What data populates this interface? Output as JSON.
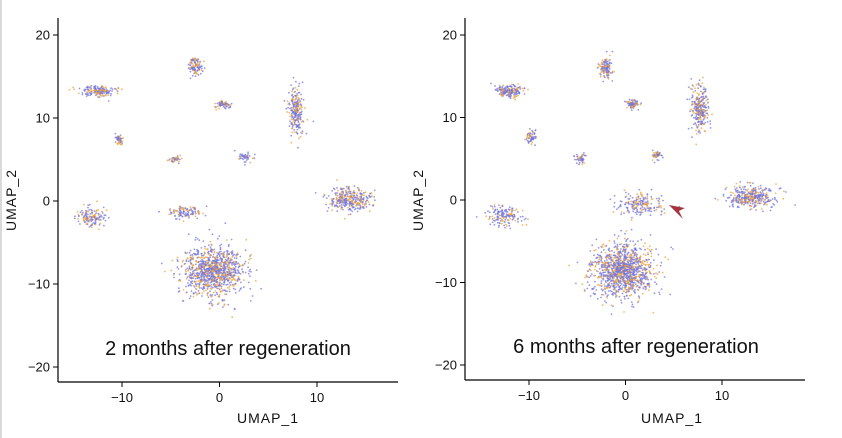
{
  "chart_data": [
    {
      "type": "scatter",
      "title": "2 months after regeneration",
      "xlabel": "UMAP_1",
      "ylabel": "UMAP_2",
      "xlim": [
        -17,
        18
      ],
      "ylim": [
        -22,
        22
      ],
      "xticks": [
        -10,
        0,
        10
      ],
      "yticks": [
        -20,
        -10,
        0,
        10,
        20
      ],
      "grid": false,
      "series_colors": [
        "#f0a030",
        "#7274e0"
      ],
      "clusters": [
        {
          "x": -12.5,
          "y": 13.2,
          "sx": 1.6,
          "sy": 0.6,
          "n": 170
        },
        {
          "x": -2.5,
          "y": 16.3,
          "sx": 0.6,
          "sy": 1.0,
          "n": 110
        },
        {
          "x": 0.3,
          "y": 11.6,
          "sx": 0.7,
          "sy": 0.5,
          "n": 70
        },
        {
          "x": 7.8,
          "y": 11.0,
          "sx": 0.7,
          "sy": 2.5,
          "n": 240
        },
        {
          "x": -10.3,
          "y": 7.4,
          "sx": 0.4,
          "sy": 0.6,
          "n": 45
        },
        {
          "x": -4.5,
          "y": 5.0,
          "sx": 0.5,
          "sy": 0.4,
          "n": 40
        },
        {
          "x": 2.6,
          "y": 5.2,
          "sx": 0.6,
          "sy": 0.6,
          "n": 45
        },
        {
          "x": -13.0,
          "y": -1.9,
          "sx": 1.4,
          "sy": 1.0,
          "n": 140
        },
        {
          "x": 13.3,
          "y": 0.2,
          "sx": 2.1,
          "sy": 1.3,
          "n": 340
        },
        {
          "x": -3.5,
          "y": -1.4,
          "sx": 1.6,
          "sy": 0.7,
          "n": 110
        },
        {
          "x": -0.6,
          "y": -8.5,
          "sx": 2.8,
          "sy": 2.8,
          "n": 1050
        }
      ]
    },
    {
      "type": "scatter",
      "title": "6 months after regeneration",
      "xlabel": "UMAP_1",
      "ylabel": "UMAP_2",
      "xlim": [
        -17,
        18
      ],
      "ylim": [
        -22,
        22
      ],
      "xticks": [
        -10,
        0,
        10
      ],
      "yticks": [
        -20,
        -10,
        0,
        10,
        20
      ],
      "grid": false,
      "series_colors": [
        "#f0a030",
        "#7274e0"
      ],
      "annotation": {
        "type": "arrowhead",
        "x": 4.5,
        "y": -0.6,
        "color": "#a8323c"
      },
      "clusters": [
        {
          "x": -12.0,
          "y": 13.2,
          "sx": 1.2,
          "sy": 0.7,
          "n": 190
        },
        {
          "x": -2.0,
          "y": 16.0,
          "sx": 0.6,
          "sy": 1.1,
          "n": 130
        },
        {
          "x": 0.7,
          "y": 11.6,
          "sx": 0.6,
          "sy": 0.5,
          "n": 80
        },
        {
          "x": 7.7,
          "y": 11.0,
          "sx": 0.8,
          "sy": 2.7,
          "n": 280
        },
        {
          "x": -9.8,
          "y": 7.6,
          "sx": 0.5,
          "sy": 0.7,
          "n": 60
        },
        {
          "x": -4.5,
          "y": 5.0,
          "sx": 0.6,
          "sy": 0.5,
          "n": 50
        },
        {
          "x": 3.3,
          "y": 5.4,
          "sx": 0.5,
          "sy": 0.6,
          "n": 50
        },
        {
          "x": -12.5,
          "y": -1.9,
          "sx": 1.6,
          "sy": 1.2,
          "n": 160
        },
        {
          "x": 13.0,
          "y": 0.3,
          "sx": 2.3,
          "sy": 1.2,
          "n": 360
        },
        {
          "x": 1.6,
          "y": -0.5,
          "sx": 2.3,
          "sy": 1.2,
          "n": 190
        },
        {
          "x": -0.3,
          "y": -8.5,
          "sx": 2.8,
          "sy": 2.8,
          "n": 1200
        }
      ]
    }
  ]
}
